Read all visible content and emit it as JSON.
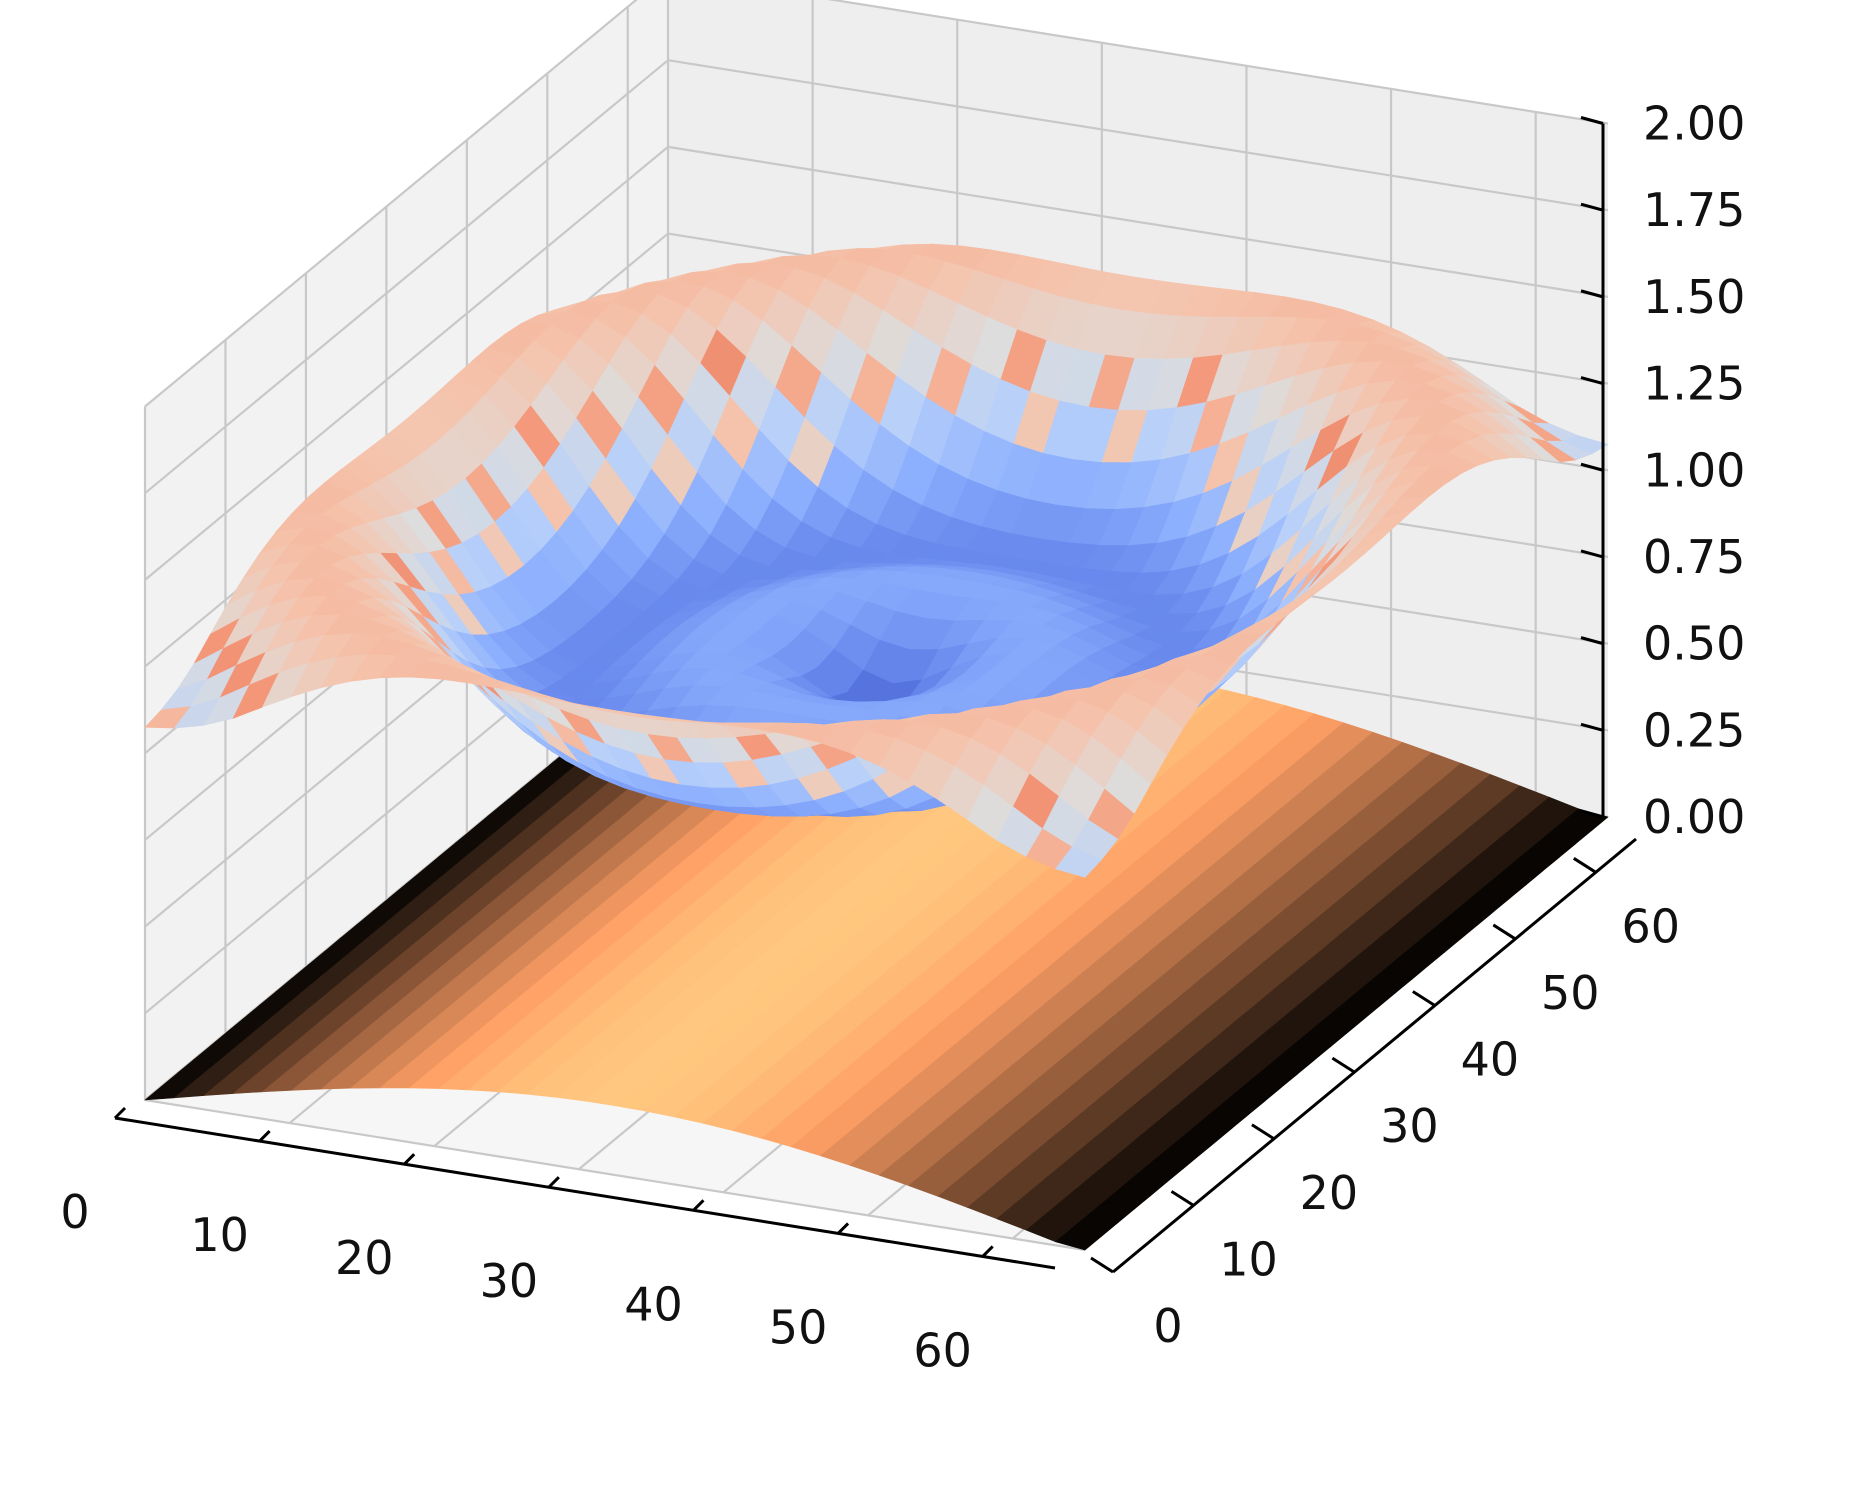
{
  "chart_data": {
    "type": "surface3d",
    "title": "",
    "xlabel": "",
    "ylabel": "",
    "zlabel": "",
    "x_range": [
      0,
      65
    ],
    "y_range": [
      0,
      65
    ],
    "zlim": [
      0,
      2
    ],
    "grid": true,
    "legend": "none",
    "x_ticks": [
      "0",
      "10",
      "20",
      "30",
      "40",
      "50",
      "60"
    ],
    "y_ticks": [
      "0",
      "10",
      "20",
      "30",
      "40",
      "50",
      "60"
    ],
    "z_ticks": [
      "0.00",
      "0.25",
      "0.50",
      "0.75",
      "1.00",
      "1.25",
      "1.50",
      "1.75",
      "2.00"
    ],
    "series": [
      {
        "colormap": "coolwarm",
        "function": "z = 1 + 0.4·(rx−1)·(1−cos(0.55·π·r)) + noisy ripples, zero-centered rippled cap, edges ≈ 0.75–1.0",
        "z_range": [
          0.6,
          1.5
        ]
      },
      {
        "colormap": "copper",
        "function": "z = sin(π·x/64)·0.2 saddle-like sheet, peak near center x, edges ≈ 0",
        "z_range": [
          0.0,
          0.2
        ]
      }
    ],
    "colors": {
      "coolwarm_low": "#3b4cc0",
      "coolwarm_mid": "#dddcdc",
      "coolwarm_high": "#b40426",
      "copper_low": "#000000",
      "copper_high": "#ffc77f",
      "grid": "#c8c8c8",
      "pane": "#f2f2f2"
    }
  }
}
